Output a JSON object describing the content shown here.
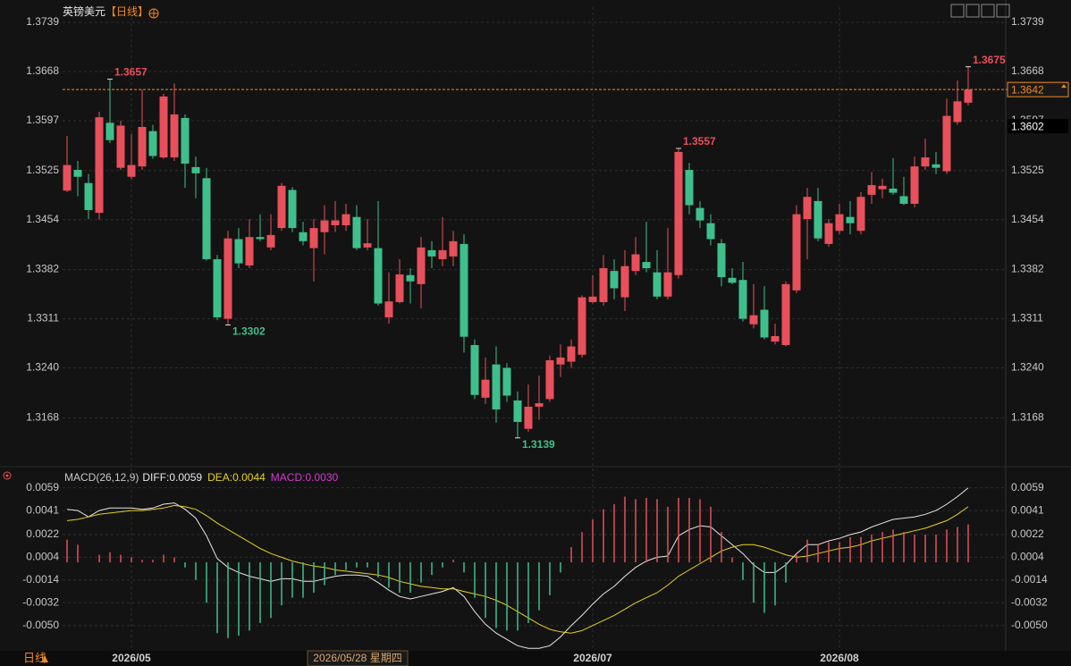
{
  "chart_data": [
    {
      "type": "candlestick",
      "title": "英镑美元",
      "period": "【日线】",
      "footer_period": "日线",
      "up_color": "#e8505b",
      "down_color": "#3fbf8c",
      "open": [
        1.3496,
        1.3526,
        1.3507,
        1.3464,
        1.3594,
        1.3529,
        1.3516,
        1.3531,
        1.3582,
        1.3544,
        1.3544,
        1.3601,
        1.353,
        1.3514,
        1.3397,
        1.3311,
        1.3426,
        1.3388,
        1.3429,
        1.3414,
        1.3442,
        1.3497,
        1.3436,
        1.3413,
        1.3436,
        1.3446,
        1.3446,
        1.3458,
        1.3414,
        1.3413,
        1.3313,
        1.3335,
        1.3374,
        1.3361,
        1.341,
        1.3397,
        1.3401,
        1.3419,
        1.3273,
        1.3197,
        1.3245,
        1.324,
        1.3193,
        1.3152,
        1.3184,
        1.3195,
        1.3245,
        1.3249,
        1.3259,
        1.3335,
        1.3335,
        1.338,
        1.3342,
        1.338,
        1.3393,
        1.3378,
        1.3343,
        1.3374,
        1.3526,
        1.3471,
        1.3449,
        1.342,
        1.337,
        1.3367,
        1.3303,
        1.3324,
        1.3278,
        1.3273,
        1.3352,
        1.3455,
        1.3481,
        1.3419,
        1.3438,
        1.3458,
        1.3438,
        1.349,
        1.3498,
        1.3499,
        1.3488,
        1.3477,
        1.3531,
        1.3534,
        1.3524,
        1.3595,
        1.3623
      ],
      "high": [
        1.3575,
        1.3539,
        1.352,
        1.361,
        1.3657,
        1.3597,
        1.3578,
        1.3642,
        1.3591,
        1.3636,
        1.3651,
        1.3606,
        1.3545,
        1.3529,
        1.3403,
        1.3438,
        1.3442,
        1.3455,
        1.3462,
        1.3462,
        1.3507,
        1.3501,
        1.3451,
        1.3455,
        1.3475,
        1.3481,
        1.3477,
        1.3475,
        1.3455,
        1.3481,
        1.3378,
        1.3397,
        1.3384,
        1.3429,
        1.3423,
        1.3458,
        1.3438,
        1.3433,
        1.3281,
        1.3255,
        1.3271,
        1.3247,
        1.3206,
        1.3216,
        1.3229,
        1.3258,
        1.3274,
        1.3281,
        1.3345,
        1.3374,
        1.3403,
        1.3397,
        1.341,
        1.3429,
        1.3451,
        1.341,
        1.3442,
        1.3557,
        1.3536,
        1.3481,
        1.3462,
        1.3426,
        1.3384,
        1.3393,
        1.3361,
        1.3358,
        1.3304,
        1.3365,
        1.3475,
        1.35,
        1.35,
        1.3455,
        1.3477,
        1.3481,
        1.3494,
        1.3523,
        1.3513,
        1.3543,
        1.3516,
        1.3545,
        1.3571,
        1.3552,
        1.3629,
        1.3655,
        1.3675
      ],
      "low": [
        1.3494,
        1.3488,
        1.3455,
        1.3454,
        1.3565,
        1.3526,
        1.3513,
        1.3526,
        1.3542,
        1.3542,
        1.3539,
        1.35,
        1.3485,
        1.3395,
        1.3309,
        1.3302,
        1.3384,
        1.3384,
        1.3423,
        1.341,
        1.3438,
        1.3436,
        1.3417,
        1.3365,
        1.3404,
        1.3436,
        1.3438,
        1.341,
        1.341,
        1.333,
        1.3304,
        1.3333,
        1.3333,
        1.3326,
        1.3384,
        1.3387,
        1.3387,
        1.3262,
        1.3195,
        1.3188,
        1.3161,
        1.3191,
        1.3139,
        1.3148,
        1.3165,
        1.3191,
        1.3227,
        1.324,
        1.3255,
        1.3333,
        1.333,
        1.3339,
        1.3322,
        1.3374,
        1.3378,
        1.3339,
        1.3339,
        1.3369,
        1.3462,
        1.3442,
        1.3417,
        1.3358,
        1.3361,
        1.3307,
        1.3297,
        1.3281,
        1.3274,
        1.3271,
        1.3348,
        1.3397,
        1.3423,
        1.3415,
        1.3433,
        1.3433,
        1.3433,
        1.3477,
        1.3485,
        1.349,
        1.3475,
        1.3472,
        1.3526,
        1.352,
        1.352,
        1.3591,
        1.3619
      ],
      "close": [
        1.3533,
        1.3516,
        1.3468,
        1.3602,
        1.3569,
        1.359,
        1.3533,
        1.3588,
        1.3546,
        1.3632,
        1.3606,
        1.3535,
        1.3521,
        1.3397,
        1.3313,
        1.3427,
        1.3391,
        1.3429,
        1.3426,
        1.3432,
        1.3503,
        1.3442,
        1.3423,
        1.3442,
        1.3453,
        1.3453,
        1.3462,
        1.3413,
        1.342,
        1.3333,
        1.3336,
        1.3375,
        1.3365,
        1.3414,
        1.3401,
        1.341,
        1.3423,
        1.3285,
        1.3201,
        1.3223,
        1.318,
        1.32,
        1.3162,
        1.3184,
        1.3189,
        1.3251,
        1.3255,
        1.3271,
        1.3342,
        1.3343,
        1.3384,
        1.3355,
        1.3387,
        1.3404,
        1.3384,
        1.3343,
        1.3378,
        1.3552,
        1.3475,
        1.3453,
        1.3426,
        1.3371,
        1.3363,
        1.3311,
        1.3316,
        1.3284,
        1.3286,
        1.3361,
        1.3462,
        1.3487,
        1.3427,
        1.3449,
        1.3462,
        1.3449,
        1.3487,
        1.3504,
        1.3503,
        1.3493,
        1.3477,
        1.3531,
        1.3544,
        1.3529,
        1.3604,
        1.3625,
        1.3642
      ],
      "annotations": [
        1.3657,
        1.3302,
        1.3557,
        1.3139,
        1.3675
      ],
      "last_price": 1.3642,
      "cursor_price": 1.3602,
      "cursor_date": "2026/05/28 星期四",
      "xlim": [
        -5,
        87.5
      ],
      "xticks": [
        {
          "value": 6,
          "label": "2026/05"
        },
        {
          "value": 49,
          "label": "2026/07"
        },
        {
          "value": 72,
          "label": "2026/08"
        }
      ],
      "ylim": [
        1.31,
        1.3761
      ],
      "yticks": [
        1.3739,
        1.3668,
        1.3597,
        1.3525,
        1.3454,
        1.3382,
        1.3311,
        {
          "value": 1.324,
          "label": "1.3240"
        },
        1.3168
      ],
      "grid": true
    },
    {
      "type": "macd",
      "title": "MACD(26,12,9)",
      "xlim": [
        -5,
        87.5
      ],
      "ylim": [
        -0.007,
        0.0063
      ],
      "yticks": [
        0.0059,
        0.0041,
        0.0022,
        0.0004,
        -0.0014,
        -0.0032,
        {
          "value": -0.005,
          "label": "-0.0050"
        }
      ],
      "series": [
        {
          "label": "DIFF:0.0059",
          "kind": "line",
          "color": "#e8e8e8",
          "values": [
            0.0042,
            0.0041,
            0.0036,
            0.0041,
            0.0043,
            0.0043,
            0.0043,
            0.0042,
            0.0043,
            0.0046,
            0.0047,
            0.0042,
            0.0035,
            0.0021,
            0.0003,
            -0.0004,
            -0.0008,
            -0.0011,
            -0.0013,
            -0.0015,
            -0.0013,
            -0.0013,
            -0.0015,
            -0.0015,
            -0.0013,
            -0.0011,
            -0.001,
            -0.001,
            -0.0011,
            -0.0016,
            -0.0022,
            -0.0027,
            -0.0029,
            -0.0027,
            -0.0025,
            -0.0023,
            -0.002,
            -0.0027,
            -0.0039,
            -0.0049,
            -0.0056,
            -0.0061,
            -0.0066,
            -0.0068,
            -0.0068,
            -0.0066,
            -0.0059,
            -0.005,
            -0.0042,
            -0.0033,
            -0.0025,
            -0.0019,
            -0.0011,
            -0.0004,
            0.0001,
            0.0004,
            0.0005,
            0.0021,
            0.0026,
            0.0029,
            0.0028,
            0.0021,
            0.0014,
            0.0007,
            -0.0002,
            -0.0008,
            -0.0008,
            -0.0002,
            0.0007,
            0.0014,
            0.0014,
            0.0017,
            0.0019,
            0.0022,
            0.0024,
            0.0028,
            0.0031,
            0.0034,
            0.0035,
            0.0036,
            0.0038,
            0.0041,
            0.0046,
            0.0052,
            0.0059
          ]
        },
        {
          "label": "DEA:0.0044",
          "kind": "line",
          "color": "#e6d21e",
          "values": [
            0.0033,
            0.0034,
            0.0036,
            0.0038,
            0.0039,
            0.004,
            0.0041,
            0.0041,
            0.0042,
            0.0043,
            0.0045,
            0.0044,
            0.0042,
            0.0037,
            0.0031,
            0.0026,
            0.0021,
            0.0016,
            0.0011,
            0.0007,
            0.0004,
            0.0001,
            -0.0001,
            -0.0003,
            -0.0004,
            -0.0006,
            -0.0007,
            -0.0008,
            -0.0009,
            -0.001,
            -0.0012,
            -0.0015,
            -0.0017,
            -0.0019,
            -0.002,
            -0.0021,
            -0.0021,
            -0.0023,
            -0.0025,
            -0.0027,
            -0.003,
            -0.0034,
            -0.0039,
            -0.0044,
            -0.0049,
            -0.0053,
            -0.0055,
            -0.0056,
            -0.0054,
            -0.005,
            -0.0046,
            -0.0042,
            -0.0037,
            -0.0032,
            -0.0028,
            -0.0024,
            -0.0018,
            -0.0011,
            -0.0006,
            -0.0001,
            0.0004,
            0.0009,
            0.0012,
            0.0014,
            0.0014,
            0.0012,
            0.0009,
            0.0006,
            0.0004,
            0.0005,
            0.0007,
            0.0009,
            0.0011,
            0.0012,
            0.0014,
            0.0017,
            0.0019,
            0.0021,
            0.0023,
            0.0025,
            0.0027,
            0.003,
            0.0033,
            0.0038,
            0.0044
          ]
        },
        {
          "label": "MACD:0.0030",
          "kind": "histogram",
          "color": "#d23cd2",
          "up_color": "#e8505b",
          "down_color": "#3fbf8c",
          "values": [
            0.0018,
            0.0014,
            0,
            0.0006,
            0.0008,
            0.0006,
            0.0004,
            0.0002,
            0.0002,
            0.0006,
            0.0004,
            -0.0004,
            -0.0014,
            -0.0032,
            -0.0056,
            -0.006,
            -0.0058,
            -0.0054,
            -0.0048,
            -0.0044,
            -0.0034,
            -0.0028,
            -0.0028,
            -0.0024,
            -0.0018,
            -0.001,
            -0.0006,
            -0.0004,
            -0.0004,
            -0.0012,
            -0.002,
            -0.0024,
            -0.0024,
            -0.0016,
            -0.001,
            -0.0004,
            0.0002,
            -0.0008,
            -0.0028,
            -0.0044,
            -0.0052,
            -0.0054,
            -0.0054,
            -0.0048,
            -0.0038,
            -0.0026,
            -0.0008,
            0.0012,
            0.0024,
            0.0034,
            0.0042,
            0.0046,
            0.0052,
            0.005,
            0.0051,
            0.005,
            0.0044,
            0.0051,
            0.0051,
            0.005,
            0.0044,
            0.0024,
            0.0004,
            -0.0014,
            -0.0032,
            -0.004,
            -0.0034,
            -0.0016,
            0.0006,
            0.0018,
            0.0014,
            0.0016,
            0.0016,
            0.002,
            0.002,
            0.0022,
            0.0024,
            0.0026,
            0.0024,
            0.0022,
            0.0022,
            0.0022,
            0.0026,
            0.0028,
            0.003
          ]
        }
      ]
    }
  ]
}
